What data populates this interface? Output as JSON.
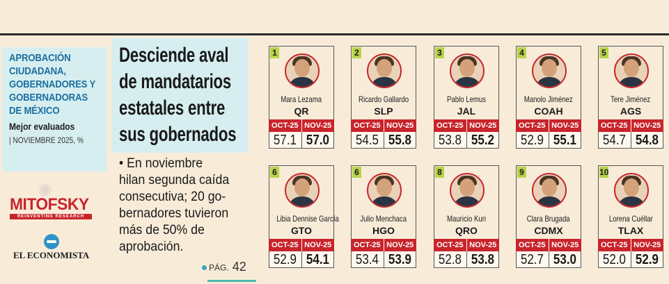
{
  "sidebar": {
    "title_lines": [
      "APROBACIÓN",
      "CIUDADANA,",
      "GOBERNADORES Y",
      "GOBERNADORAS",
      "DE MÉXICO"
    ],
    "subtitle": "Mejor evaluados",
    "date": "| NOVIEMBRE 2025, %",
    "brand": "MITOFSKY",
    "brand_tagline": "REINVENTING RESEARCH",
    "publisher": "EL ECONOMISTA"
  },
  "headline": {
    "lines": [
      "Desciende aval",
      "de mandatarios",
      "estatales entre",
      "sus gobernados"
    ]
  },
  "body": {
    "lines": [
      "• En noviembre",
      "hilan segunda caída",
      "consecutiva; 20 go-",
      "bernadores tuvieron",
      "más de 50% de",
      "aprobación."
    ]
  },
  "page_ref": {
    "label": "PÁG.",
    "number": "42"
  },
  "colors": {
    "accent_red": "#c8242b",
    "panel_blue": "#d7eef0",
    "rank_green": "#b7d34a",
    "title_blue": "#1b6fa2",
    "background": "#f8ecd9"
  },
  "period_labels": {
    "prev": "OCT-25",
    "curr": "NOV-25"
  },
  "governors": [
    {
      "rank": "1",
      "name": "Mara Lezama",
      "state": "QR",
      "oct": "57.1",
      "nov": "57.0"
    },
    {
      "rank": "2",
      "name": "Ricardo Gallardo",
      "state": "SLP",
      "oct": "54.5",
      "nov": "55.8"
    },
    {
      "rank": "3",
      "name": "Pablo Lemus",
      "state": "JAL",
      "oct": "53.8",
      "nov": "55.2"
    },
    {
      "rank": "4",
      "name": "Manolo Jiménez",
      "state": "COAH",
      "oct": "52.9",
      "nov": "55.1"
    },
    {
      "rank": "5",
      "name": "Tere Jiménez",
      "state": "AGS",
      "oct": "54.7",
      "nov": "54.8"
    },
    {
      "rank": "6",
      "name": "Libia Dennise García",
      "state": "GTO",
      "oct": "52.9",
      "nov": "54.1"
    },
    {
      "rank": "6",
      "name": "Julio Menchaca",
      "state": "HGO",
      "oct": "53.4",
      "nov": "53.9"
    },
    {
      "rank": "8",
      "name": "Mauricio Kuri",
      "state": "QRO",
      "oct": "52.8",
      "nov": "53.8"
    },
    {
      "rank": "9",
      "name": "Clara Brugada",
      "state": "CDMX",
      "oct": "52.7",
      "nov": "53.0"
    },
    {
      "rank": "10",
      "name": "Lorena Cuéllar",
      "state": "TLAX",
      "oct": "52.0",
      "nov": "52.9"
    }
  ]
}
